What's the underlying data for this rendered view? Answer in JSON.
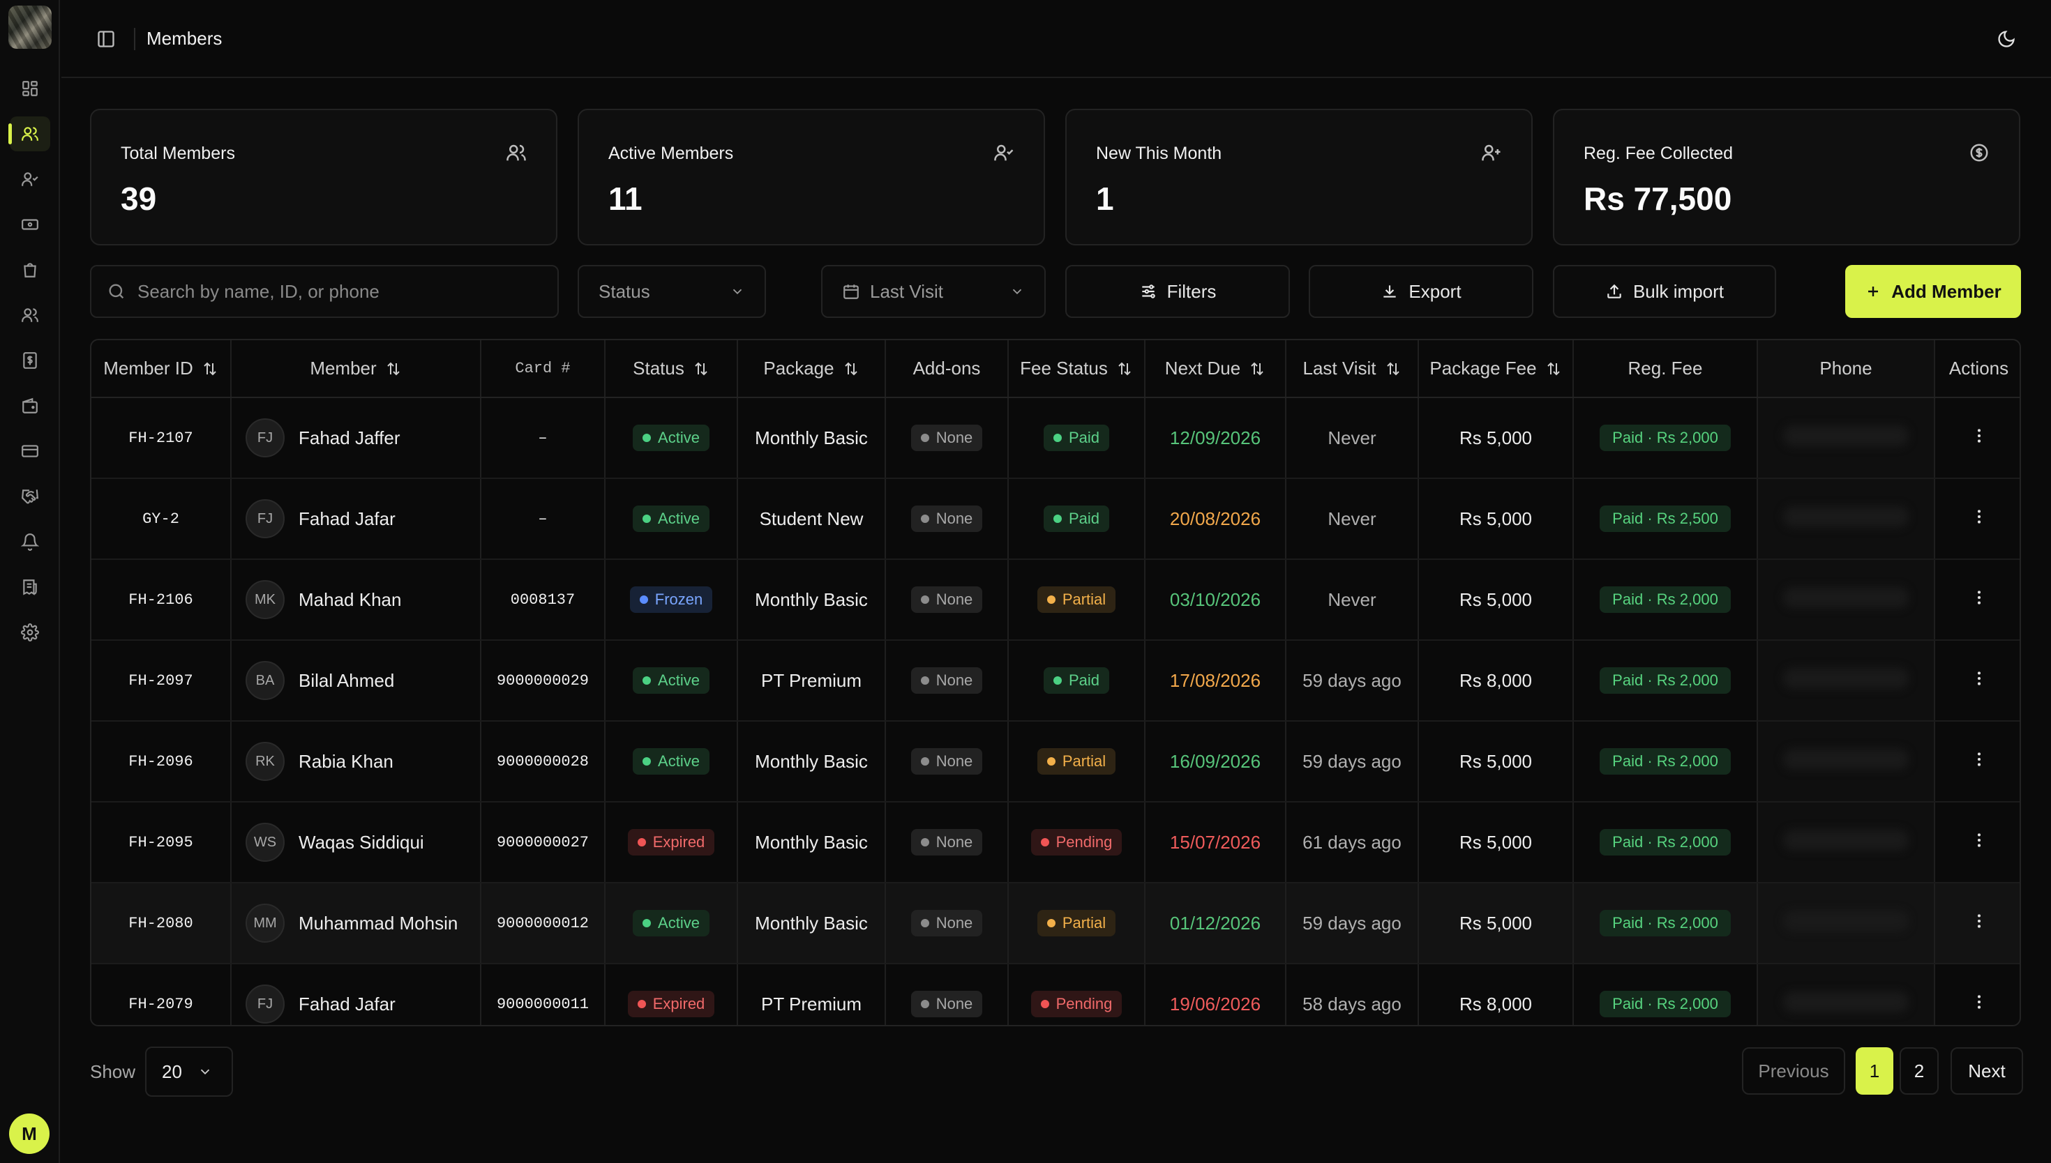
{
  "header": {
    "title": "Members"
  },
  "sidebar": {
    "items": [
      "dashboard-icon",
      "members-icon",
      "user-check-icon",
      "ticket-icon",
      "shopping-bag-icon",
      "staff-icon",
      "billing-icon",
      "wallet-icon",
      "card-icon",
      "handshake-icon",
      "bell-icon",
      "receipt-icon",
      "settings-icon"
    ],
    "active": "members-icon",
    "user_initial": "M"
  },
  "stats": [
    {
      "label": "Total Members",
      "value": "39",
      "icon": "users-icon"
    },
    {
      "label": "Active Members",
      "value": "11",
      "icon": "user-check-icon"
    },
    {
      "label": "New This Month",
      "value": "1",
      "icon": "user-plus-icon"
    },
    {
      "label": "Reg. Fee Collected",
      "value": "Rs 77,500",
      "icon": "dollar-circle-icon"
    }
  ],
  "toolbar": {
    "search_placeholder": "Search by name, ID, or phone",
    "status_select": "Status",
    "last_visit_select": "Last Visit",
    "filters": "Filters",
    "export": "Export",
    "bulk_import": "Bulk import",
    "add_member": "Add Member"
  },
  "table": {
    "columns": [
      "Member ID",
      "Member",
      "Card #",
      "Status",
      "Package",
      "Add-ons",
      "Fee Status",
      "Next Due",
      "Last Visit",
      "Package Fee",
      "Reg. Fee",
      "Phone",
      "Actions"
    ],
    "rows": [
      {
        "id": "FH-2107",
        "initials": "FJ",
        "name": "Fahad Jaffer",
        "card": "–",
        "status": "Active",
        "package": "Monthly Basic",
        "addons": "None",
        "fee_status": "Paid",
        "next_due": "12/09/2026",
        "next_due_color": "green",
        "last_visit": "Never",
        "package_fee": "Rs 5,000",
        "reg_fee": "Paid · Rs 2,000"
      },
      {
        "id": "GY-2",
        "initials": "FJ",
        "name": "Fahad Jafar",
        "card": "–",
        "status": "Active",
        "package": "Student New",
        "addons": "None",
        "fee_status": "Paid",
        "next_due": "20/08/2026",
        "next_due_color": "orange",
        "last_visit": "Never",
        "package_fee": "Rs 5,000",
        "reg_fee": "Paid · Rs 2,500"
      },
      {
        "id": "FH-2106",
        "initials": "MK",
        "name": "Mahad Khan",
        "card": "0008137",
        "status": "Frozen",
        "package": "Monthly Basic",
        "addons": "None",
        "fee_status": "Partial",
        "next_due": "03/10/2026",
        "next_due_color": "green",
        "last_visit": "Never",
        "package_fee": "Rs 5,000",
        "reg_fee": "Paid · Rs 2,000"
      },
      {
        "id": "FH-2097",
        "initials": "BA",
        "name": "Bilal Ahmed",
        "card": "9000000029",
        "status": "Active",
        "package": "PT Premium",
        "addons": "None",
        "fee_status": "Paid",
        "next_due": "17/08/2026",
        "next_due_color": "orange",
        "last_visit": "59 days ago",
        "package_fee": "Rs 8,000",
        "reg_fee": "Paid · Rs 2,000"
      },
      {
        "id": "FH-2096",
        "initials": "RK",
        "name": "Rabia Khan",
        "card": "9000000028",
        "status": "Active",
        "package": "Monthly Basic",
        "addons": "None",
        "fee_status": "Partial",
        "next_due": "16/09/2026",
        "next_due_color": "green",
        "last_visit": "59 days ago",
        "package_fee": "Rs 5,000",
        "reg_fee": "Paid · Rs 2,000"
      },
      {
        "id": "FH-2095",
        "initials": "WS",
        "name": "Waqas Siddiqui",
        "card": "9000000027",
        "status": "Expired",
        "package": "Monthly Basic",
        "addons": "None",
        "fee_status": "Pending",
        "next_due": "15/07/2026",
        "next_due_color": "red",
        "last_visit": "61 days ago",
        "package_fee": "Rs 5,000",
        "reg_fee": "Paid · Rs 2,000"
      },
      {
        "id": "FH-2080",
        "initials": "MM",
        "name": "Muhammad Mohsin",
        "card": "9000000012",
        "status": "Active",
        "package": "Monthly Basic",
        "addons": "None",
        "fee_status": "Partial",
        "next_due": "01/12/2026",
        "next_due_color": "green",
        "last_visit": "59 days ago",
        "package_fee": "Rs 5,000",
        "reg_fee": "Paid · Rs 2,000"
      },
      {
        "id": "FH-2079",
        "initials": "FJ",
        "name": "Fahad Jafar",
        "card": "9000000011",
        "status": "Expired",
        "package": "PT Premium",
        "addons": "None",
        "fee_status": "Pending",
        "next_due": "19/06/2026",
        "next_due_color": "red",
        "last_visit": "58 days ago",
        "package_fee": "Rs 8,000",
        "reg_fee": "Paid · Rs 2,000"
      }
    ]
  },
  "pagination": {
    "show_label": "Show",
    "page_size": "20",
    "previous": "Previous",
    "pages": [
      "1",
      "2"
    ],
    "current": "1",
    "next": "Next"
  },
  "colors": {
    "accent": "#d9f24a",
    "background": "#0a0a0a",
    "active": "#4bd183",
    "frozen": "#5b8dff",
    "expired": "#f05555",
    "partial": "#f2b04a"
  }
}
